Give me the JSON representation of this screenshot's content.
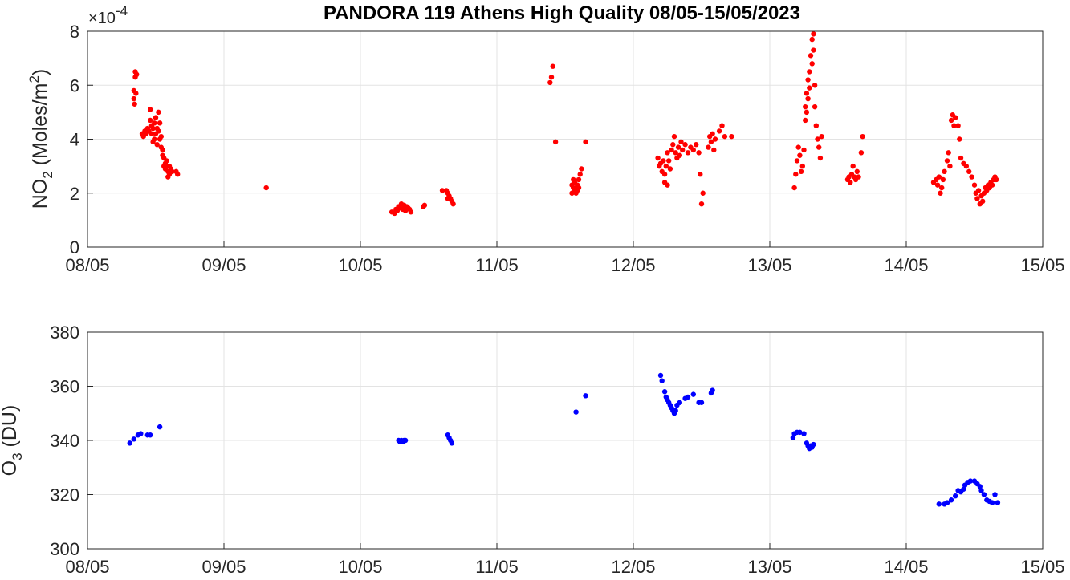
{
  "title": "PANDORA 119 Athens High Quality 08/05-15/05/2023",
  "chart_data": [
    {
      "type": "scatter",
      "ylabel_main": "NO",
      "ylabel_sub": "2",
      "ylabel_rest": " (Moles/m",
      "ylabel_sup": "2",
      "ylabel_end": ")",
      "multiplier": "×10",
      "multiplier_exp": "-4",
      "ylim": [
        0,
        8
      ],
      "yticks": [
        "0",
        "2",
        "4",
        "6",
        "8"
      ],
      "x_ticks": [
        "08/05",
        "09/05",
        "10/05",
        "11/05",
        "12/05",
        "13/05",
        "14/05",
        "15/05"
      ],
      "xlim": [
        "2023-05-08",
        "2023-05-15"
      ],
      "x_unit": "days since 08/05",
      "grid": true,
      "color": "#ff0000",
      "points": [
        [
          0.34,
          5.8
        ],
        [
          0.34,
          5.5
        ],
        [
          0.35,
          6.3
        ],
        [
          0.35,
          6.5
        ],
        [
          0.36,
          6.4
        ],
        [
          0.345,
          5.3
        ],
        [
          0.355,
          5.7
        ],
        [
          0.4,
          4.2
        ],
        [
          0.41,
          4.1
        ],
        [
          0.42,
          4.3
        ],
        [
          0.43,
          4.2
        ],
        [
          0.44,
          4.4
        ],
        [
          0.45,
          4.3
        ],
        [
          0.46,
          4.7
        ],
        [
          0.46,
          5.1
        ],
        [
          0.47,
          4.2
        ],
        [
          0.47,
          4.5
        ],
        [
          0.48,
          4.4
        ],
        [
          0.48,
          3.9
        ],
        [
          0.49,
          4.6
        ],
        [
          0.49,
          4.0
        ],
        [
          0.5,
          4.8
        ],
        [
          0.5,
          4.2
        ],
        [
          0.51,
          4.4
        ],
        [
          0.51,
          3.8
        ],
        [
          0.52,
          5.0
        ],
        [
          0.52,
          4.3
        ],
        [
          0.53,
          4.6
        ],
        [
          0.53,
          4.0
        ],
        [
          0.54,
          3.7
        ],
        [
          0.54,
          4.1
        ],
        [
          0.55,
          3.4
        ],
        [
          0.55,
          3.6
        ],
        [
          0.56,
          3.3
        ],
        [
          0.56,
          3.0
        ],
        [
          0.57,
          3.1
        ],
        [
          0.57,
          2.9
        ],
        [
          0.58,
          3.0
        ],
        [
          0.58,
          3.2
        ],
        [
          0.59,
          2.8
        ],
        [
          0.59,
          2.6
        ],
        [
          0.6,
          2.7
        ],
        [
          0.6,
          3.0
        ],
        [
          0.61,
          2.9
        ],
        [
          0.62,
          2.8
        ],
        [
          0.65,
          2.8
        ],
        [
          0.66,
          2.7
        ],
        [
          1.31,
          2.2
        ],
        [
          2.23,
          1.3
        ],
        [
          2.25,
          1.25
        ],
        [
          2.26,
          1.4
        ],
        [
          2.27,
          1.35
        ],
        [
          2.28,
          1.5
        ],
        [
          2.29,
          1.45
        ],
        [
          2.3,
          1.6
        ],
        [
          2.31,
          1.4
        ],
        [
          2.32,
          1.55
        ],
        [
          2.33,
          1.35
        ],
        [
          2.34,
          1.5
        ],
        [
          2.35,
          1.45
        ],
        [
          2.36,
          1.4
        ],
        [
          2.37,
          1.3
        ],
        [
          2.46,
          1.5
        ],
        [
          2.47,
          1.55
        ],
        [
          2.6,
          2.1
        ],
        [
          2.63,
          2.1
        ],
        [
          2.64,
          2.0
        ],
        [
          2.65,
          1.9
        ],
        [
          2.66,
          1.8
        ],
        [
          2.67,
          1.7
        ],
        [
          2.68,
          1.6
        ],
        [
          2.64,
          1.8
        ],
        [
          3.39,
          6.1
        ],
        [
          3.4,
          6.3
        ],
        [
          3.41,
          6.7
        ],
        [
          3.43,
          3.9
        ],
        [
          3.55,
          2.3
        ],
        [
          3.55,
          2.0
        ],
        [
          3.56,
          2.2
        ],
        [
          3.56,
          2.5
        ],
        [
          3.57,
          2.1
        ],
        [
          3.57,
          2.4
        ],
        [
          3.58,
          2.2
        ],
        [
          3.58,
          2.0
        ],
        [
          3.59,
          2.3
        ],
        [
          3.59,
          2.1
        ],
        [
          3.6,
          2.5
        ],
        [
          3.6,
          2.2
        ],
        [
          3.61,
          2.7
        ],
        [
          3.62,
          2.9
        ],
        [
          3.65,
          3.9
        ],
        [
          4.18,
          3.3
        ],
        [
          4.19,
          3.0
        ],
        [
          4.2,
          3.1
        ],
        [
          4.21,
          2.8
        ],
        [
          4.22,
          3.2
        ],
        [
          4.23,
          2.7
        ],
        [
          4.23,
          2.4
        ],
        [
          4.24,
          3.0
        ],
        [
          4.25,
          2.3
        ],
        [
          4.25,
          3.5
        ],
        [
          4.26,
          3.2
        ],
        [
          4.27,
          2.9
        ],
        [
          4.28,
          3.6
        ],
        [
          4.29,
          3.8
        ],
        [
          4.3,
          4.1
        ],
        [
          4.31,
          3.5
        ],
        [
          4.32,
          3.3
        ],
        [
          4.33,
          3.7
        ],
        [
          4.34,
          3.4
        ],
        [
          4.35,
          3.9
        ],
        [
          4.36,
          3.6
        ],
        [
          4.38,
          3.8
        ],
        [
          4.4,
          3.5
        ],
        [
          4.42,
          3.7
        ],
        [
          4.44,
          3.6
        ],
        [
          4.46,
          3.8
        ],
        [
          4.48,
          3.5
        ],
        [
          4.49,
          2.7
        ],
        [
          4.5,
          1.6
        ],
        [
          4.51,
          2.0
        ],
        [
          4.55,
          3.7
        ],
        [
          4.56,
          4.1
        ],
        [
          4.57,
          3.9
        ],
        [
          4.58,
          4.2
        ],
        [
          4.59,
          3.6
        ],
        [
          4.6,
          4.0
        ],
        [
          4.63,
          4.3
        ],
        [
          4.65,
          4.5
        ],
        [
          4.67,
          4.1
        ],
        [
          4.72,
          4.1
        ],
        [
          5.18,
          2.2
        ],
        [
          5.19,
          2.7
        ],
        [
          5.2,
          3.2
        ],
        [
          5.21,
          3.7
        ],
        [
          5.22,
          3.4
        ],
        [
          5.23,
          2.8
        ],
        [
          5.24,
          3.0
        ],
        [
          5.25,
          3.6
        ],
        [
          5.26,
          4.7
        ],
        [
          5.26,
          5.2
        ],
        [
          5.27,
          5.7
        ],
        [
          5.27,
          5.0
        ],
        [
          5.28,
          6.2
        ],
        [
          5.28,
          5.5
        ],
        [
          5.29,
          6.5
        ],
        [
          5.29,
          5.9
        ],
        [
          5.3,
          7.1
        ],
        [
          5.31,
          7.7
        ],
        [
          5.31,
          6.8
        ],
        [
          5.32,
          7.9
        ],
        [
          5.32,
          7.3
        ],
        [
          5.33,
          6.0
        ],
        [
          5.33,
          5.2
        ],
        [
          5.34,
          4.5
        ],
        [
          5.35,
          4.0
        ],
        [
          5.36,
          3.7
        ],
        [
          5.37,
          3.3
        ],
        [
          5.38,
          4.1
        ],
        [
          5.57,
          2.5
        ],
        [
          5.58,
          2.6
        ],
        [
          5.59,
          2.4
        ],
        [
          5.6,
          2.7
        ],
        [
          5.61,
          3.0
        ],
        [
          5.62,
          2.6
        ],
        [
          5.63,
          2.5
        ],
        [
          5.64,
          2.8
        ],
        [
          5.65,
          2.6
        ],
        [
          5.67,
          3.5
        ],
        [
          5.68,
          4.1
        ],
        [
          6.2,
          2.4
        ],
        [
          6.22,
          2.5
        ],
        [
          6.23,
          2.3
        ],
        [
          6.24,
          2.6
        ],
        [
          6.25,
          2.0
        ],
        [
          6.26,
          2.2
        ],
        [
          6.27,
          2.5
        ],
        [
          6.28,
          2.8
        ],
        [
          6.3,
          3.2
        ],
        [
          6.31,
          3.5
        ],
        [
          6.32,
          3.0
        ],
        [
          6.33,
          4.7
        ],
        [
          6.34,
          4.9
        ],
        [
          6.35,
          4.5
        ],
        [
          6.36,
          4.8
        ],
        [
          6.38,
          4.5
        ],
        [
          6.39,
          4.0
        ],
        [
          6.4,
          3.3
        ],
        [
          6.42,
          3.1
        ],
        [
          6.44,
          3.0
        ],
        [
          6.46,
          2.8
        ],
        [
          6.48,
          2.6
        ],
        [
          6.5,
          2.3
        ],
        [
          6.51,
          2.0
        ],
        [
          6.52,
          1.8
        ],
        [
          6.53,
          2.1
        ],
        [
          6.54,
          1.6
        ],
        [
          6.55,
          1.9
        ],
        [
          6.56,
          1.7
        ],
        [
          6.57,
          2.0
        ],
        [
          6.58,
          2.2
        ],
        [
          6.59,
          2.1
        ],
        [
          6.6,
          2.3
        ],
        [
          6.61,
          2.2
        ],
        [
          6.62,
          2.4
        ],
        [
          6.63,
          2.3
        ],
        [
          6.64,
          2.5
        ],
        [
          6.65,
          2.6
        ],
        [
          6.66,
          2.5
        ]
      ]
    },
    {
      "type": "scatter",
      "ylabel_main": "O",
      "ylabel_sub": "3",
      "ylabel_rest": " (DU)",
      "ylim": [
        300,
        380
      ],
      "yticks": [
        "300",
        "320",
        "340",
        "360",
        "380"
      ],
      "x_ticks": [
        "08/05",
        "09/05",
        "10/05",
        "11/05",
        "12/05",
        "13/05",
        "14/05",
        "15/05"
      ],
      "xlim": [
        "2023-05-08",
        "2023-05-15"
      ],
      "x_unit": "days since 08/05",
      "grid": true,
      "color": "#0000ff",
      "points": [
        [
          0.31,
          339
        ],
        [
          0.34,
          340.5
        ],
        [
          0.37,
          342
        ],
        [
          0.39,
          342.5
        ],
        [
          0.44,
          342
        ],
        [
          0.46,
          342
        ],
        [
          0.53,
          345
        ],
        [
          2.28,
          340
        ],
        [
          2.29,
          339.5
        ],
        [
          2.3,
          340
        ],
        [
          2.31,
          339.5
        ],
        [
          2.32,
          340
        ],
        [
          2.33,
          340
        ],
        [
          2.64,
          342
        ],
        [
          2.65,
          341
        ],
        [
          2.66,
          340
        ],
        [
          2.67,
          339
        ],
        [
          3.58,
          350.5
        ],
        [
          3.65,
          356.5
        ],
        [
          4.2,
          364
        ],
        [
          4.21,
          362
        ],
        [
          4.23,
          358
        ],
        [
          4.24,
          356
        ],
        [
          4.25,
          355
        ],
        [
          4.26,
          354
        ],
        [
          4.27,
          353
        ],
        [
          4.28,
          352
        ],
        [
          4.29,
          351
        ],
        [
          4.3,
          350
        ],
        [
          4.31,
          351
        ],
        [
          4.32,
          353
        ],
        [
          4.34,
          354
        ],
        [
          4.38,
          355.5
        ],
        [
          4.4,
          356
        ],
        [
          4.44,
          357
        ],
        [
          4.48,
          354
        ],
        [
          4.5,
          354
        ],
        [
          4.57,
          357.5
        ],
        [
          4.58,
          358.5
        ],
        [
          5.17,
          341
        ],
        [
          5.18,
          342.5
        ],
        [
          5.2,
          343
        ],
        [
          5.22,
          343
        ],
        [
          5.25,
          342.5
        ],
        [
          5.27,
          339
        ],
        [
          5.28,
          338
        ],
        [
          5.29,
          337
        ],
        [
          5.3,
          338
        ],
        [
          5.31,
          337.5
        ],
        [
          5.32,
          338.5
        ],
        [
          6.24,
          316.5
        ],
        [
          6.28,
          316.5
        ],
        [
          6.3,
          317
        ],
        [
          6.33,
          318
        ],
        [
          6.36,
          319.5
        ],
        [
          6.38,
          321.5
        ],
        [
          6.4,
          321
        ],
        [
          6.42,
          322
        ],
        [
          6.43,
          323.5
        ],
        [
          6.45,
          324.5
        ],
        [
          6.47,
          325
        ],
        [
          6.5,
          325
        ],
        [
          6.52,
          324
        ],
        [
          6.54,
          323
        ],
        [
          6.55,
          321.5
        ],
        [
          6.57,
          320
        ],
        [
          6.59,
          318
        ],
        [
          6.61,
          317.5
        ],
        [
          6.63,
          317
        ],
        [
          6.65,
          320
        ],
        [
          6.67,
          317
        ]
      ]
    }
  ]
}
